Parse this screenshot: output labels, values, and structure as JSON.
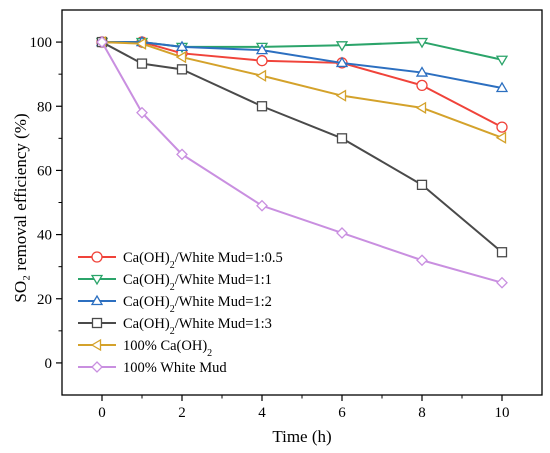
{
  "chart_data": {
    "type": "line",
    "xlabel": "Time (h)",
    "ylabel": "SO₂ removal efficiency (%)",
    "xlim": [
      -1,
      11
    ],
    "ylim": [
      -10,
      110
    ],
    "xticks": [
      0,
      2,
      4,
      6,
      8,
      10
    ],
    "yticks": [
      0,
      20,
      40,
      60,
      80,
      100
    ],
    "grid": false,
    "legend_position": "lower-left",
    "x": [
      0,
      1,
      2,
      4,
      6,
      8,
      10
    ],
    "series": [
      {
        "name_parts": [
          "Ca(OH)",
          "2",
          "/White Mud=1:0.5"
        ],
        "values": [
          100,
          100,
          96.5,
          94.2,
          93.5,
          86.5,
          73.5
        ],
        "color": "#f0433a",
        "marker": "circle-open"
      },
      {
        "name_parts": [
          "Ca(OH)",
          "2",
          "/White Mud=1:1"
        ],
        "values": [
          100,
          100,
          98.5,
          98.5,
          99,
          100,
          94.5
        ],
        "color": "#2ba46a",
        "marker": "triangle-down-open"
      },
      {
        "name_parts": [
          "Ca(OH)",
          "2",
          "/White Mud=1:2"
        ],
        "values": [
          100,
          100,
          98.5,
          97.5,
          93.5,
          90.5,
          85.7
        ],
        "color": "#2c6fc0",
        "marker": "triangle-up-open"
      },
      {
        "name_parts": [
          "Ca(OH)",
          "2",
          "/White Mud=1:3"
        ],
        "values": [
          100,
          93.3,
          91.5,
          80,
          70,
          55.5,
          34.5
        ],
        "color": "#4a4a4a",
        "marker": "square-open"
      },
      {
        "name_parts": [
          "100% Ca(OH)",
          "2",
          ""
        ],
        "values": [
          100,
          99.5,
          95.3,
          89.5,
          83.3,
          79.5,
          70.2
        ],
        "color": "#d4a22b",
        "marker": "triangle-left-open"
      },
      {
        "name_parts": [
          "100% White Mud",
          "",
          ""
        ],
        "values": [
          100,
          78,
          65,
          49,
          40.5,
          32,
          25
        ],
        "color": "#c98fe0",
        "marker": "diamond-open"
      }
    ]
  }
}
